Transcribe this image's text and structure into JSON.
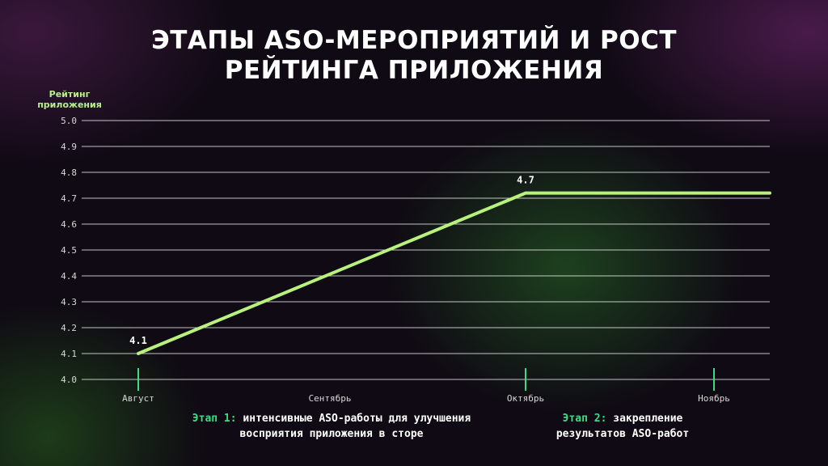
{
  "title": {
    "line1": "ЭТАПЫ ASO-МЕРОПРИЯТИЙ И РОСТ",
    "line2": "РЕЙТИНГА ПРИЛОЖЕНИЯ"
  },
  "colors": {
    "line": "#b8f27c",
    "grid": "#ffffff",
    "marker": "#3ddc84",
    "accent_label": "#3ddc84",
    "ylabel": "#b6f08a"
  },
  "chart_data": {
    "type": "line",
    "ylabel_lines": [
      "Рейтинг",
      "приложения"
    ],
    "ylim": [
      4.0,
      5.0
    ],
    "yticks": [
      "5.0",
      "4.9",
      "4.8",
      "4.7",
      "4.6",
      "4.5",
      "4.4",
      "4.3",
      "4.2",
      "4.1",
      "4.0"
    ],
    "categories": [
      "Август",
      "Сентябрь",
      "Октябрь",
      "Ноябрь"
    ],
    "stage_markers": [
      "Август",
      "Октябрь",
      "Ноябрь"
    ],
    "series": [
      {
        "points": [
          {
            "x": "Август",
            "y": 4.1,
            "label": "4.1"
          },
          {
            "x": "Октябрь",
            "y": 4.72,
            "label": "4.7"
          },
          {
            "x": "Ноябрь",
            "y": 4.72
          },
          {
            "x": "end",
            "y": 4.72
          }
        ]
      }
    ],
    "grid": true
  },
  "stages": [
    {
      "label": "Этап 1:",
      "text_line1": "интенсивные ASO-работы для улучшения",
      "text_line2": "восприятия приложения в сторе"
    },
    {
      "label": "Этап 2:",
      "text_line1": "закрепление",
      "text_line2": "результатов ASO-работ"
    }
  ]
}
